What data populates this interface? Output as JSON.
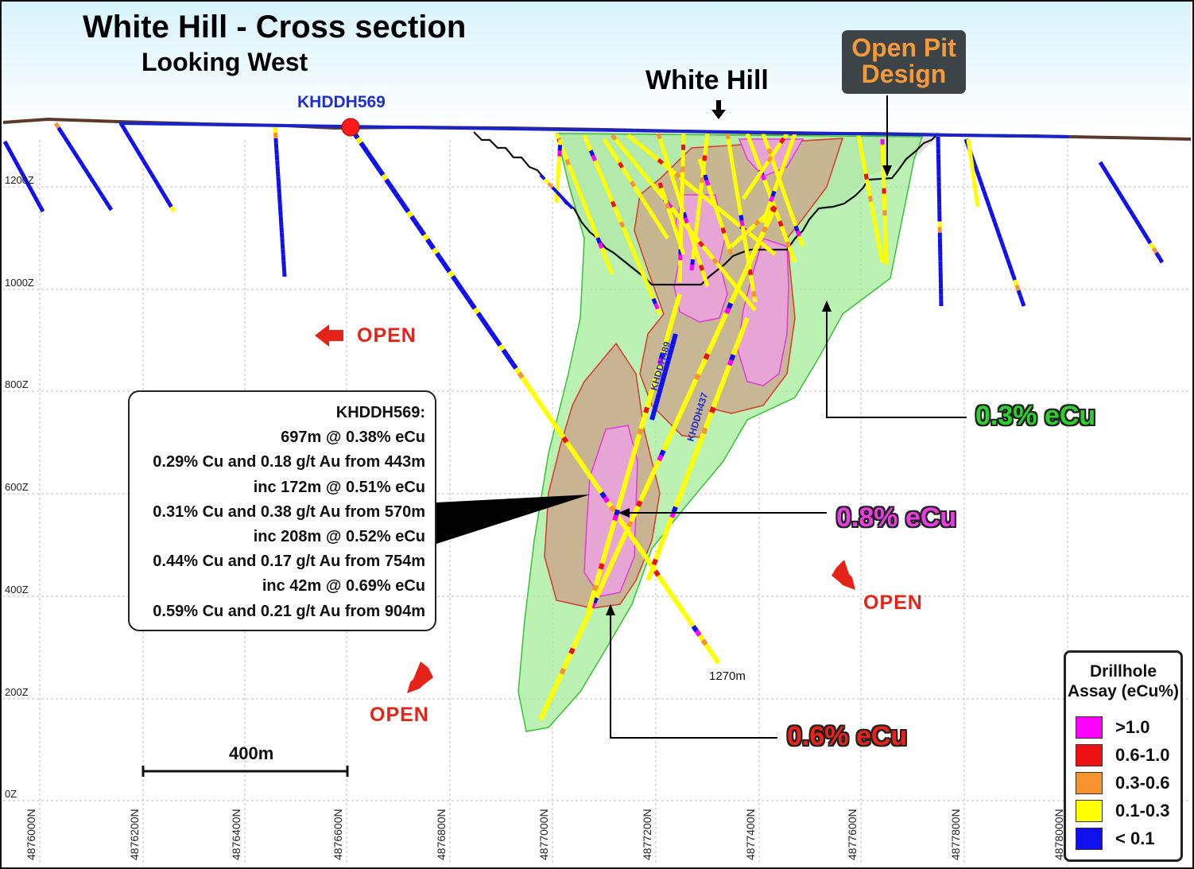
{
  "title": "White Hill  - Cross section",
  "subtitle": "Looking West",
  "feature_label": "White Hill",
  "pit_label": {
    "line1": "Open Pit",
    "line2": "Design"
  },
  "hole_top_label": "KHDDH569",
  "hole_labels": [
    "KHDDH489",
    "KHDDH437"
  ],
  "hole_length": "1270m",
  "open_labels": [
    "OPEN",
    "OPEN",
    "OPEN"
  ],
  "intercept_box": {
    "lines": [
      "KHDDH569:",
      "697m @ 0.38% eCu",
      "0.29% Cu and 0.18 g/t Au from 443m",
      "inc 172m @ 0.51% eCu",
      "0.31% Cu and 0.38 g/t Au from 570m",
      "inc 208m @ 0.52% eCu",
      "0.44% Cu and 0.17 g/t Au from 754m",
      "inc 42m @ 0.69% eCu",
      "0.59% Cu and 0.21 g/t Au from 904m"
    ]
  },
  "shells": [
    {
      "label": "0.3% eCu",
      "color": "#2ecf2e"
    },
    {
      "label": "0.8% eCu",
      "color": "#e83ee0"
    },
    {
      "label": "0.6% eCu",
      "color": "#e8231a"
    }
  ],
  "elevation_labels": [
    "1200Z",
    "1000Z",
    "800Z",
    "600Z",
    "400Z",
    "200Z",
    "0Z"
  ],
  "northing_labels": [
    "4876000N",
    "4876200N",
    "4876400N",
    "4876600N",
    "4876800N",
    "4877000N",
    "4877200N",
    "4877400N",
    "4877600N",
    "4877800N",
    "4878000N"
  ],
  "scale_bar_label": "400m",
  "legend": {
    "title_line1": "Drillhole",
    "title_line2": "Assay (eCu%)",
    "items": [
      {
        "label": ">1.0",
        "color": "#ff00ff"
      },
      {
        "label": "0.6-1.0",
        "color": "#ee1111"
      },
      {
        "label": "0.3-0.6",
        "color": "#f7932e"
      },
      {
        "label": "0.1-0.3",
        "color": "#ffff00"
      },
      {
        "label": "< 0.1",
        "color": "#1010ee"
      }
    ]
  },
  "colors": {
    "sky_top": "#dff6fb",
    "topography": "#5b3a2c",
    "pit_fill": "#dcdcdc",
    "shell_low_fill": "#a8ee9e",
    "shell_mid_fill": "#c8b794",
    "shell_high_fill": "#e2a8c9",
    "drillhole_low": "#1a22cc",
    "drillhole_mid": "#f2ee12"
  }
}
